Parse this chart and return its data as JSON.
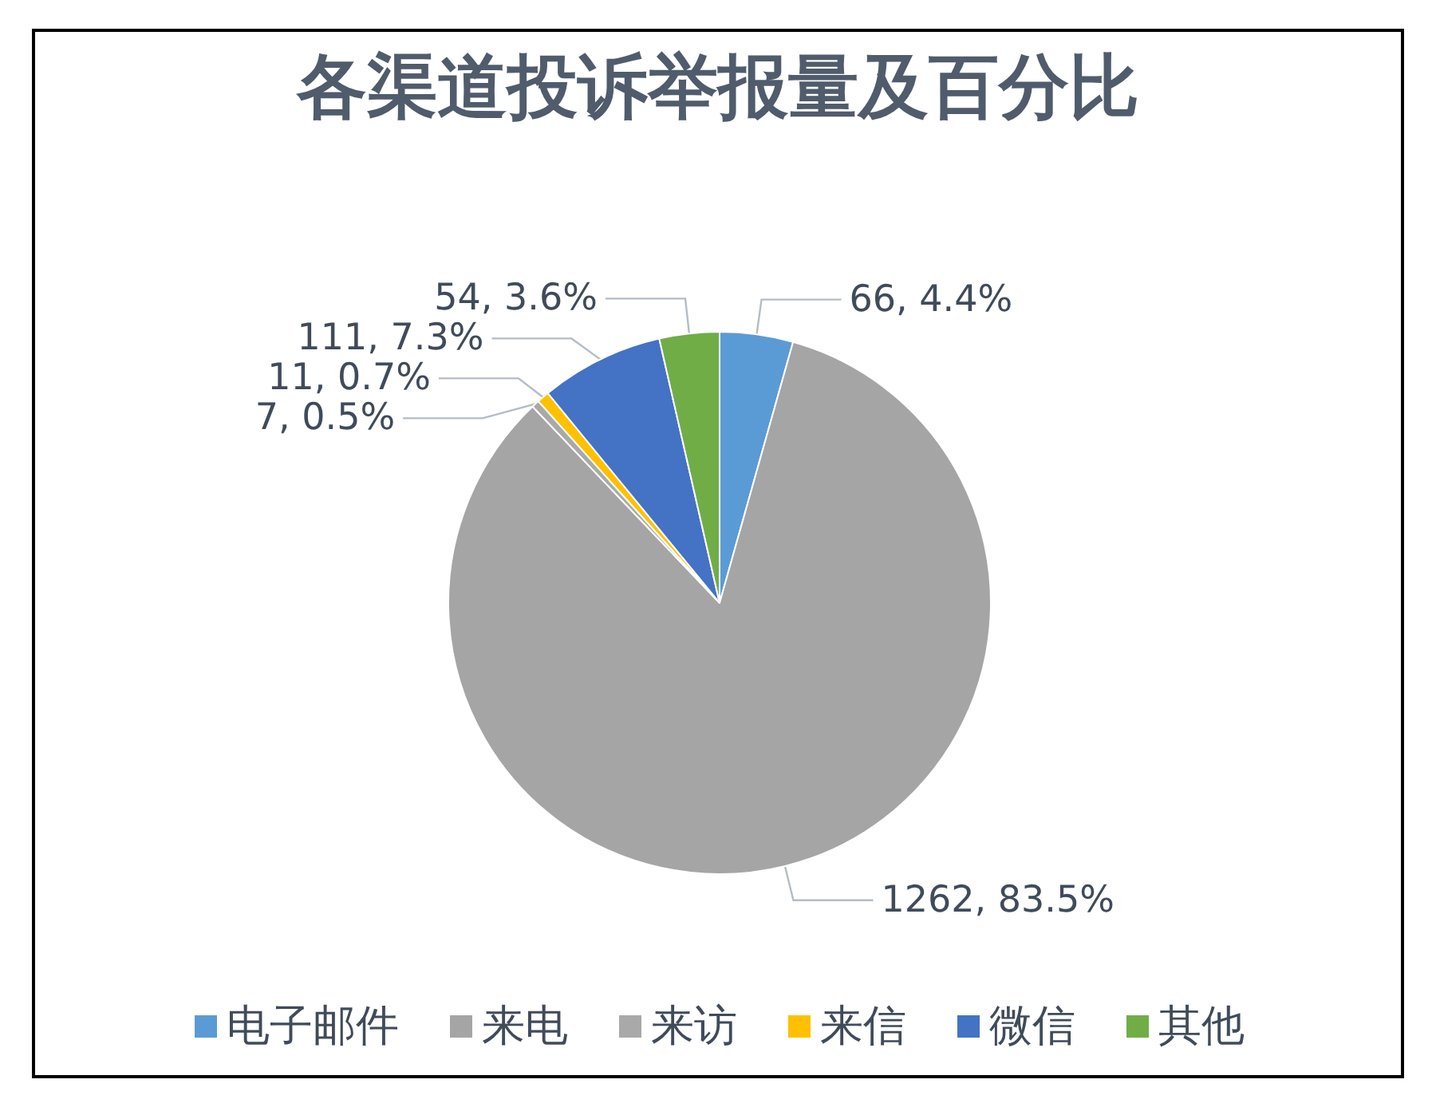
{
  "chart_data": {
    "type": "pie",
    "title": "各渠道投诉举报量及百分比",
    "categories": [
      "电子邮件",
      "来电",
      "来访",
      "来信",
      "微信",
      "其他"
    ],
    "values": [
      66,
      1262,
      7,
      11,
      111,
      54
    ],
    "colors": [
      "#5b9bd5",
      "#a5a5a5",
      "#a9a9a9",
      "#ffc000",
      "#4472c4",
      "#70ad47"
    ],
    "value_labels": [
      "66, 4.4%",
      "1262, 83.5%",
      "7, 0.5%",
      "11, 0.7%",
      "111, 7.3%",
      "54, 3.6%"
    ],
    "legend": "bottom"
  }
}
